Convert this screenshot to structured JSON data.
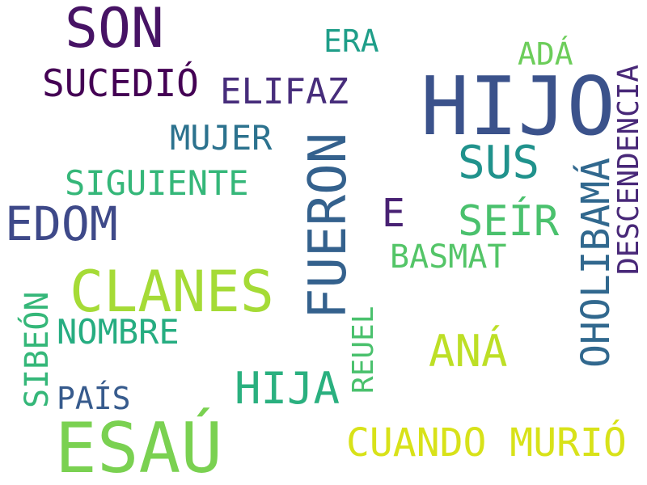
{
  "words": [
    {
      "text": "HIJO",
      "color": "#3b528b"
    },
    {
      "text": "ESAÚ",
      "color": "#7ad151"
    },
    {
      "text": "FUERON",
      "color": "#34618d"
    },
    {
      "text": "SON",
      "color": "#471365"
    },
    {
      "text": "CLANES",
      "color": "#a5db36"
    },
    {
      "text": "EDOM",
      "color": "#3e4989"
    },
    {
      "text": "OHOLIBAMÁ",
      "color": "#31688e"
    },
    {
      "text": "CUANDO MURIÓ",
      "color": "#d8e219"
    },
    {
      "text": "HIJA",
      "color": "#2ab07f"
    },
    {
      "text": "SUS",
      "color": "#20928c"
    },
    {
      "text": "SEÍR",
      "color": "#4ac16d"
    },
    {
      "text": "SUCEDIÓ",
      "color": "#440154"
    },
    {
      "text": "ANÁ",
      "color": "#bddf26"
    },
    {
      "text": "DESCENDENCIA",
      "color": "#482878"
    },
    {
      "text": "SIBEÓN",
      "color": "#35b779"
    },
    {
      "text": "ELIFAZ",
      "color": "#472d7b"
    },
    {
      "text": "SIGUIENTE",
      "color": "#35b779"
    },
    {
      "text": "NOMBRE",
      "color": "#26ad81"
    },
    {
      "text": "MUJER",
      "color": "#2c728e"
    },
    {
      "text": "BASMAT",
      "color": "#54c568"
    },
    {
      "text": "REUEL",
      "color": "#4ac16d"
    },
    {
      "text": "ERA",
      "color": "#1f9e89"
    },
    {
      "text": "ADÁ",
      "color": "#6ccd5a"
    },
    {
      "text": "PAÍS",
      "color": "#375b8d"
    },
    {
      "text": "E",
      "color": "#482173"
    }
  ]
}
